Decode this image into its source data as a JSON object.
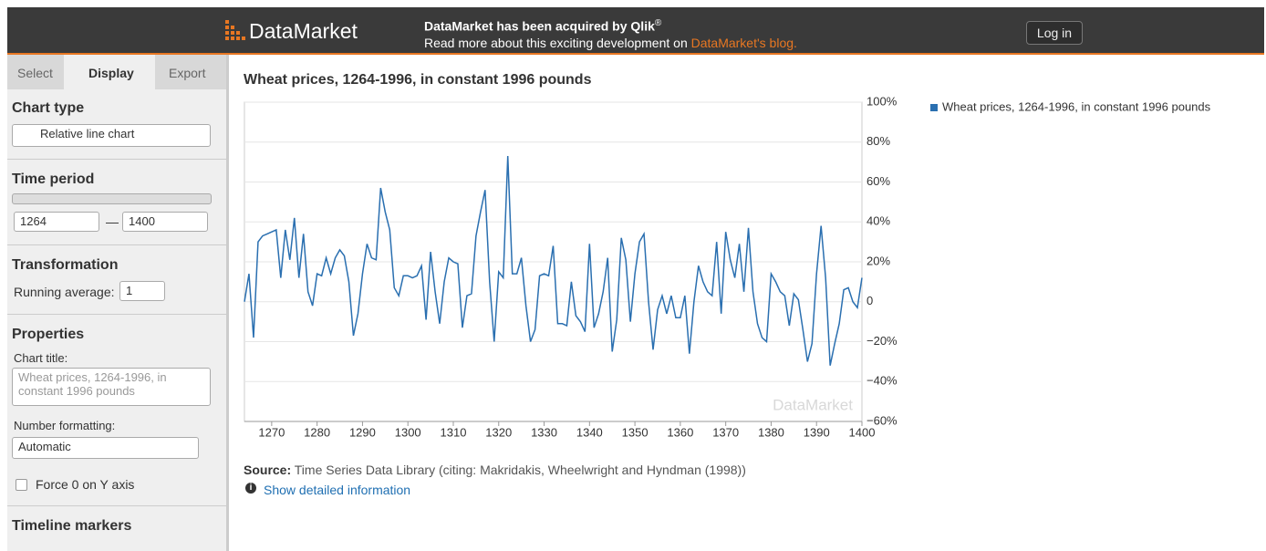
{
  "header": {
    "logo": "DataMarket",
    "news_title": "DataMarket has been acquired by Qlik",
    "news_mark": "®",
    "news_text": "Read more about this exciting development on ",
    "news_link": "DataMarket's blog.",
    "login": "Log in"
  },
  "sidebar": {
    "tabs": [
      "Select",
      "Display",
      "Export"
    ],
    "chart_type": {
      "heading": "Chart type",
      "value": "Relative line chart"
    },
    "time_period": {
      "heading": "Time period",
      "from": "1264",
      "separator": "—",
      "to": "1400"
    },
    "transformation": {
      "heading": "Transformation",
      "label": "Running average:",
      "value": "1"
    },
    "properties": {
      "heading": "Properties",
      "title_label": "Chart title:",
      "title_placeholder": "Wheat prices, 1264-1996, in constant 1996 pounds",
      "format_label": "Number formatting:",
      "format_value": "Automatic",
      "force_zero": "Force 0 on Y axis"
    },
    "timeline": {
      "heading": "Timeline markers"
    }
  },
  "source": {
    "label": "Source:",
    "text": "Time Series Data Library (citing: Makridakis, Wheelwright and Hyndman (1998))",
    "link": "Show detailed information"
  },
  "chart_data": {
    "type": "line",
    "title": "Wheat prices, 1264-1996, in constant 1996 pounds",
    "watermark": "DataMarket",
    "grid": true,
    "legend": "right",
    "xlim": [
      1264,
      1400
    ],
    "xticks": [
      1270,
      1280,
      1290,
      1300,
      1310,
      1320,
      1330,
      1340,
      1350,
      1360,
      1370,
      1380,
      1390,
      1400
    ],
    "ylim": [
      -60,
      100
    ],
    "yticks": [
      {
        "value": -60,
        "label": "−60%"
      },
      {
        "value": -40,
        "label": "−40%"
      },
      {
        "value": -20,
        "label": "−20%"
      },
      0,
      {
        "value": 20,
        "label": "20%"
      },
      {
        "value": 40,
        "label": "40%"
      },
      {
        "value": 60,
        "label": "60%"
      },
      {
        "value": 80,
        "label": "80%"
      },
      {
        "value": 100,
        "label": "100%"
      }
    ],
    "x": [
      1264,
      1265,
      1266,
      1267,
      1268,
      1269,
      1270,
      1271,
      1272,
      1273,
      1274,
      1275,
      1276,
      1277,
      1278,
      1279,
      1280,
      1281,
      1282,
      1283,
      1284,
      1285,
      1286,
      1287,
      1288,
      1289,
      1290,
      1291,
      1292,
      1293,
      1294,
      1295,
      1296,
      1297,
      1298,
      1299,
      1300,
      1301,
      1302,
      1303,
      1304,
      1305,
      1306,
      1307,
      1308,
      1309,
      1310,
      1311,
      1312,
      1313,
      1314,
      1315,
      1316,
      1317,
      1318,
      1319,
      1320,
      1321,
      1322,
      1323,
      1324,
      1325,
      1326,
      1327,
      1328,
      1329,
      1330,
      1331,
      1332,
      1333,
      1334,
      1335,
      1336,
      1337,
      1338,
      1339,
      1340,
      1341,
      1342,
      1343,
      1344,
      1345,
      1346,
      1347,
      1348,
      1349,
      1350,
      1351,
      1352,
      1353,
      1354,
      1355,
      1356,
      1357,
      1358,
      1359,
      1360,
      1361,
      1362,
      1363,
      1364,
      1365,
      1366,
      1367,
      1368,
      1369,
      1370,
      1371,
      1372,
      1373,
      1374,
      1375,
      1376,
      1377,
      1378,
      1379,
      1380,
      1381,
      1382,
      1383,
      1384,
      1385,
      1386,
      1387,
      1388,
      1389,
      1390,
      1391,
      1392,
      1393,
      1394,
      1395,
      1396,
      1397,
      1398,
      1399,
      1400
    ],
    "series": [
      {
        "name": "Wheat prices, 1264-1996, in constant 1996 pounds",
        "color": "#2a6fb0",
        "values": [
          0,
          14,
          -18,
          30,
          33,
          34,
          35,
          36,
          12,
          36,
          21,
          42,
          12,
          34,
          5,
          -2,
          14,
          13,
          22,
          14,
          22,
          26,
          23,
          10,
          -17,
          -6,
          14,
          29,
          22,
          21,
          57,
          45,
          36,
          7,
          3,
          13,
          13,
          12,
          13,
          18,
          -9,
          25,
          5,
          -11,
          10,
          22,
          20,
          19,
          -13,
          3,
          4,
          33,
          45,
          56,
          10,
          -20,
          15,
          12,
          73,
          14,
          14,
          22,
          -2,
          -20,
          -14,
          13,
          14,
          13,
          28,
          -11,
          -11,
          -12,
          10,
          -7,
          -10,
          -15,
          29,
          -13,
          -6,
          5,
          22,
          -25,
          -9,
          32,
          21,
          -10,
          14,
          30,
          34,
          0,
          -24,
          -4,
          3,
          -6,
          3,
          -8,
          -8,
          3,
          -26,
          0,
          18,
          10,
          5,
          3,
          30,
          -6,
          35,
          21,
          12,
          29,
          5,
          37,
          5,
          -11,
          -18,
          -20,
          14,
          10,
          5,
          3,
          -12,
          4,
          1,
          -14,
          -30,
          -21,
          14,
          38,
          12,
          -32,
          -21,
          -11,
          6,
          7,
          0,
          -3,
          12
        ]
      }
    ]
  }
}
